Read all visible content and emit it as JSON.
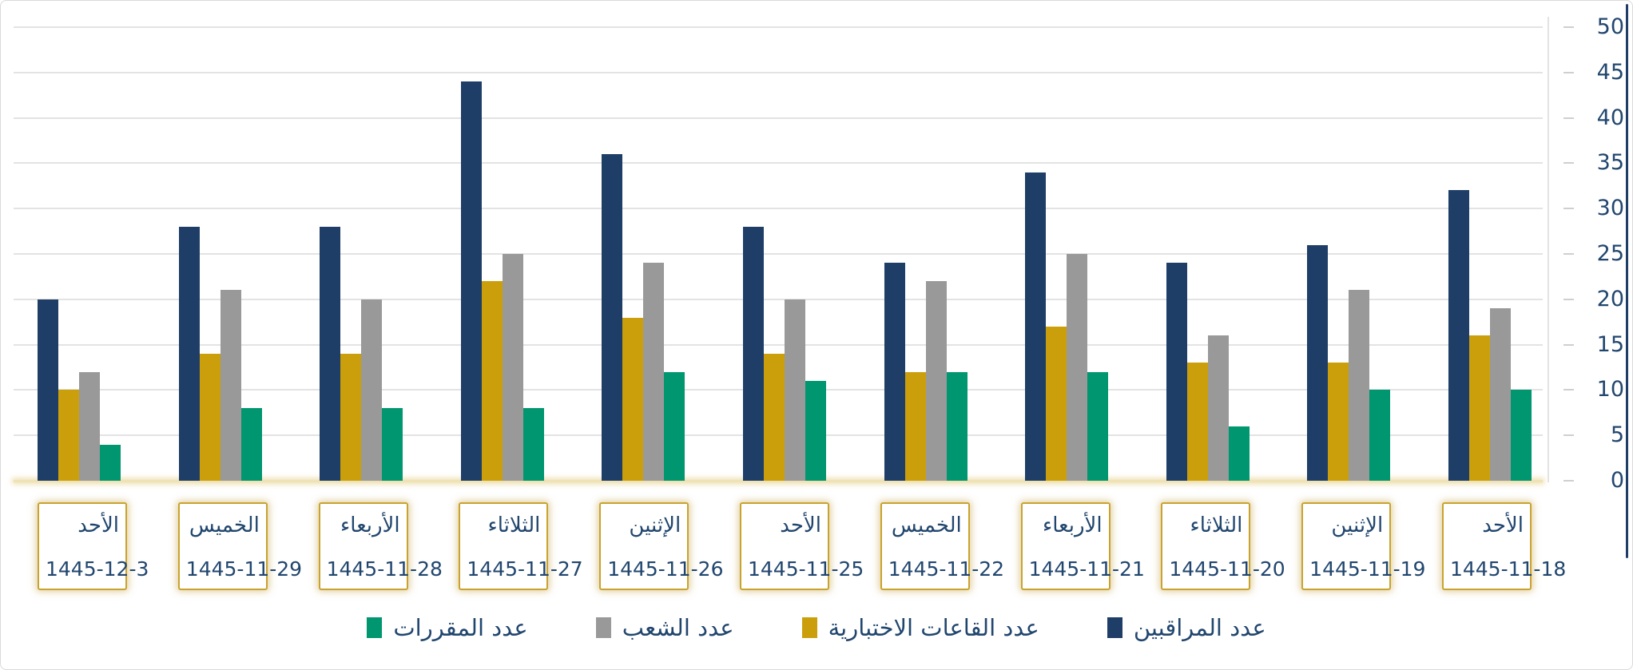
{
  "chart_data": {
    "type": "bar",
    "direction": "rtl",
    "title": "",
    "xlabel": "",
    "ylabel": "",
    "ylim": [
      0,
      50
    ],
    "ytick_step": 5,
    "y_ticks": [
      "0",
      "5",
      "10",
      "15",
      "20",
      "25",
      "30",
      "35",
      "40",
      "45",
      "50"
    ],
    "grid": "horizontal",
    "legend_position": "bottom",
    "categories": [
      {
        "day": "الأحد",
        "date": "1445-11-18"
      },
      {
        "day": "الإثنين",
        "date": "1445-11-19"
      },
      {
        "day": "الثلاثاء",
        "date": "1445-11-20"
      },
      {
        "day": "الأربعاء",
        "date": "1445-11-21"
      },
      {
        "day": "الخميس",
        "date": "1445-11-22"
      },
      {
        "day": "الأحد",
        "date": "1445-11-25"
      },
      {
        "day": "الإثنين",
        "date": "1445-11-26"
      },
      {
        "day": "الثلاثاء",
        "date": "1445-11-27"
      },
      {
        "day": "الأربعاء",
        "date": "1445-11-28"
      },
      {
        "day": "الخميس",
        "date": "1445-11-29"
      },
      {
        "day": "الأحد",
        "date": "1445-12-3"
      }
    ],
    "series": [
      {
        "name": "عدد المراقبين",
        "color": "#1e3e68",
        "values": [
          32,
          26,
          24,
          34,
          24,
          28,
          36,
          44,
          28,
          28,
          20
        ]
      },
      {
        "name": "عدد القاعات الاختبارية",
        "color": "#cb9f0c",
        "values": [
          16,
          13,
          13,
          17,
          12,
          14,
          18,
          22,
          14,
          14,
          10
        ]
      },
      {
        "name": "عدد الشعب",
        "color": "#999999",
        "values": [
          19,
          21,
          16,
          25,
          22,
          20,
          24,
          25,
          20,
          21,
          12
        ]
      },
      {
        "name": "عدد المقررات",
        "color": "#00966f",
        "values": [
          10,
          10,
          6,
          12,
          12,
          11,
          12,
          8,
          8,
          8,
          4
        ]
      }
    ],
    "colors": {
      "axis_text": "#21466e",
      "gridline": "#e3e3e3",
      "baseline": "#efe2b4",
      "box_border": "#c9a32e",
      "scrollbar": "#1e3e68"
    }
  }
}
